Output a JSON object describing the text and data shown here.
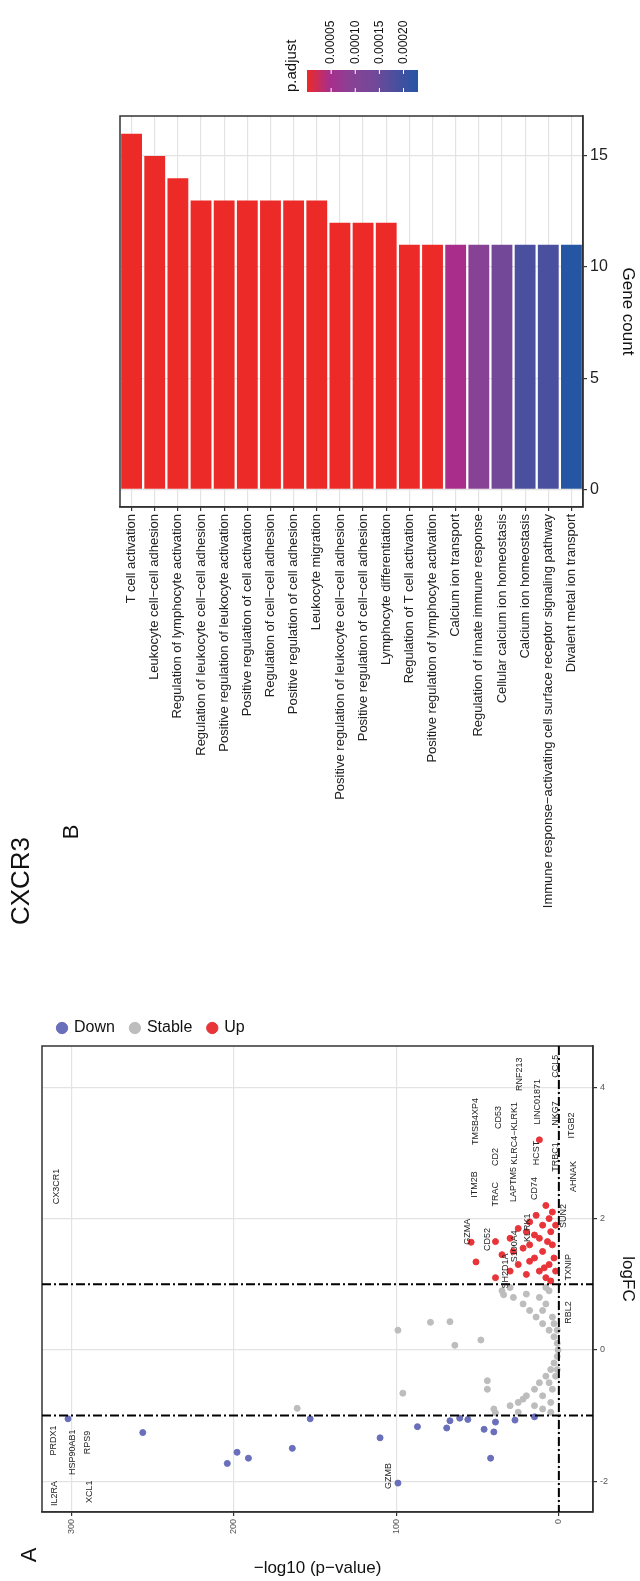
{
  "chart_data": [
    {
      "type": "scatter",
      "title": "CXCR3",
      "xlabel": "−log10 (p−value)",
      "ylabel": "logFC",
      "xlim": [
        318,
        -21
      ],
      "xticks": [
        0,
        100,
        200,
        300
      ],
      "ylim": [
        -2.47,
        4.63
      ],
      "yticks": [
        -2,
        0,
        2,
        4
      ],
      "grid": true,
      "legend": "top",
      "marker": "circle",
      "ref_lines": [
        {
          "axis": "y",
          "value": -1,
          "line_style": "dashed",
          "color": "#000000"
        },
        {
          "axis": "y",
          "value": 1,
          "line_style": "dashed",
          "color": "#000000"
        },
        {
          "axis": "x",
          "value": 0,
          "line_style": "dashed",
          "color": "#000000"
        }
      ],
      "series": [
        {
          "name": "Down",
          "color": "#6a6fbb",
          "x": [
            302,
            256,
            204,
            198,
            191,
            164,
            153,
            110,
            99,
            87,
            69,
            67,
            61,
            56,
            46,
            42,
            40,
            39,
            27,
            15
          ],
          "values": [
            -1.05,
            -1.26,
            -1.73,
            -1.56,
            -1.65,
            -1.5,
            -1.05,
            -1.34,
            -2.03,
            -1.17,
            -1.19,
            -1.08,
            -1.04,
            -1.06,
            -1.21,
            -1.65,
            -1.25,
            -1.1,
            -1.07,
            -1.02
          ]
        },
        {
          "name": "Stable",
          "color": "#bdbdbd",
          "x": [
            40,
            30,
            25,
            22,
            20,
            15,
            12,
            8,
            5,
            3,
            1,
            0.5,
            1,
            3,
            6,
            10,
            14,
            18,
            22,
            28,
            35,
            30,
            25,
            10,
            5,
            4,
            2,
            10,
            6,
            4,
            8,
            12,
            6,
            10,
            3,
            1,
            1,
            5,
            8,
            15,
            20,
            96,
            161,
            44,
            44,
            99,
            79,
            67,
            64,
            48,
            34,
            39
          ],
          "values": [
            -0.9,
            -0.85,
            -0.8,
            -0.75,
            -0.7,
            -0.6,
            -0.5,
            -0.4,
            -0.3,
            -0.2,
            -0.1,
            0,
            0.1,
            0.2,
            0.3,
            0.4,
            0.5,
            0.6,
            0.7,
            0.8,
            0.9,
            0.95,
            -0.95,
            -0.9,
            -0.8,
            -0.6,
            -0.4,
            -0.7,
            -0.5,
            0.5,
            0.7,
            0.8,
            0.9,
            0.6,
            0.4,
            -0.3,
            0.3,
            -0.95,
            0.95,
            -0.85,
            0.85,
            -0.66,
            -0.89,
            -0.47,
            -0.6,
            0.3,
            0.42,
            0.43,
            0.07,
            0.15,
            0.84,
            -0.96
          ]
        },
        {
          "name": "Up",
          "color": "#e8353a",
          "x": [
            54,
            51,
            39,
            39,
            30,
            25,
            28,
            30,
            20,
            18,
            15,
            12,
            8,
            5,
            6,
            10,
            12,
            10,
            6,
            5,
            4,
            3,
            2,
            2,
            4,
            8,
            15,
            22,
            18,
            20,
            35,
            25,
            14,
            18,
            9,
            7,
            12
          ],
          "values": [
            1.64,
            1.34,
            1.65,
            1.1,
            1.2,
            1.3,
            1.5,
            1.7,
            1.8,
            1.6,
            1.4,
            1.2,
            1.1,
            1.05,
            1.3,
            1.5,
            1.7,
            1.9,
            2.0,
            1.8,
            1.6,
            1.4,
            1.2,
            1.9,
            2.1,
            2.2,
            1.75,
            1.55,
            1.35,
            1.15,
            1.45,
            1.85,
            2.05,
            1.95,
            1.25,
            1.65,
            3.2
          ]
        }
      ],
      "annotations": [
        "A",
        "GZMA",
        "CD52",
        "ITM2B",
        "TMSB4XP4",
        "TRAC",
        "CD2",
        "CD53",
        "SH2D1A",
        "S100A4",
        "LAPTM5",
        "KLRC4−KLRK1",
        "KLRK1",
        "RNF213",
        "CD74",
        "HCST",
        "LINC01871",
        "TRBC1",
        "NKG7",
        "CCL5",
        "ITGB2",
        "AHNAK",
        "SUN2",
        "TXNIP",
        "RBL2",
        "PRDX1",
        "HSP90AB1",
        "RPS9",
        "IL2RA",
        "XCL1",
        "GZMB",
        "CX3CR1"
      ]
    },
    {
      "type": "bar",
      "ylabel": "Gene count",
      "categories": [
        "T cell activation",
        "Leukocyte cell−cell adhesion",
        "Regulation of lymphocyte activation",
        "Regulation of leukocyte cell−cell adhesion",
        "Positive regulation of leukocyte activation",
        "Positive regulation of cell activation",
        "Regulation of cell−cell adhesion",
        "Positive regulation of cell adhesion",
        "Leukocyte migration",
        "Positive regulation of leukocyte cell−cell adhesion",
        "Positive regulation of cell−cell adhesion",
        "Lymphocyte differentiation",
        "Regulation of T cell activation",
        "Positive regulation of lymphocyte activation",
        "Calcium ion transport",
        "Regulation of innate immune response",
        "Cellular calcium ion homeostasis",
        "Calcium ion homeostasis",
        "Immune response−activating cell surface receptor signaling pathway",
        "Divalent metal ion transport"
      ],
      "values": [
        16,
        15,
        14,
        13,
        13,
        13,
        13,
        13,
        13,
        12,
        12,
        12,
        11,
        11,
        11,
        11,
        11,
        11,
        11,
        11
      ],
      "colors": [
        "#ec2a28",
        "#ec2a28",
        "#ec2a28",
        "#ec2a28",
        "#ec2a28",
        "#ec2a28",
        "#ec2a28",
        "#ec2a28",
        "#ec2a28",
        "#ec2a28",
        "#ec2a28",
        "#ec2a28",
        "#ec2a28",
        "#ec2a28",
        "#a92e8b",
        "#884295",
        "#734898",
        "#4a4f9e",
        "#4a4f9e",
        "#2556a4"
      ],
      "ylim": [
        -0.8,
        16.8
      ],
      "yticks": [
        0,
        5,
        10,
        15
      ],
      "grid": true,
      "legend": false,
      "clabel": "p.adjust",
      "clim": [
        0,
        0.00023
      ],
      "cticks": [
        {
          "value": 5e-05,
          "label": "0.00005"
        },
        {
          "value": 0.0001,
          "label": "0.00010"
        },
        {
          "value": 0.00015,
          "label": "0.00015"
        },
        {
          "value": 0.0002,
          "label": "0.00020"
        }
      ],
      "annotations": [
        "B"
      ]
    }
  ]
}
